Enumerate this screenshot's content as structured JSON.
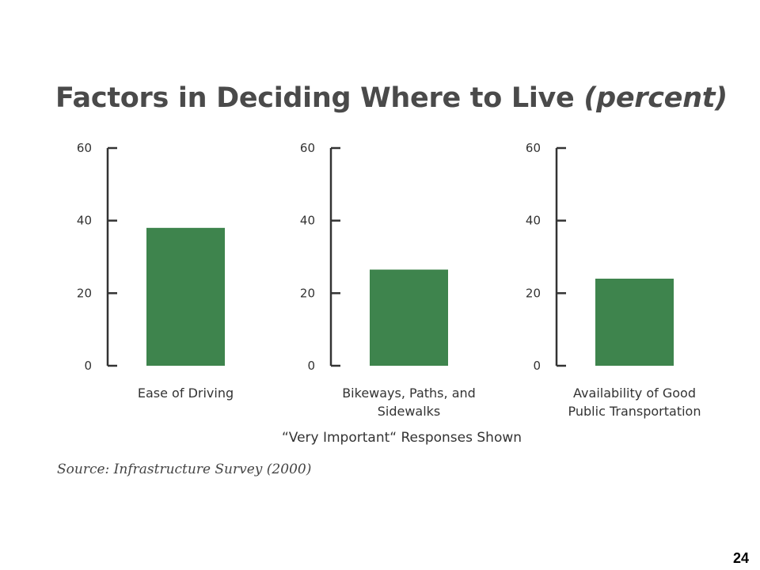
{
  "title": {
    "main": "Factors in Deciding Where to Live",
    "suffix": "(percent)"
  },
  "caption": "“Very Important“ Responses Shown",
  "source": "Source: Infrastructure Survey (2000)",
  "page_number": "24",
  "colors": {
    "bar": "#3e844d",
    "axis": "#333333"
  },
  "chart_data": [
    {
      "type": "bar",
      "categories": [
        "Ease of Driving"
      ],
      "category_lines": [
        [
          "Ease of Driving"
        ]
      ],
      "values": [
        38
      ],
      "ylim": [
        0,
        60
      ],
      "yticks": [
        0,
        20,
        40,
        60
      ],
      "xlabel": "",
      "ylabel": "",
      "grid": false
    },
    {
      "type": "bar",
      "categories": [
        "Bikeways, Paths, and Sidewalks"
      ],
      "category_lines": [
        [
          "Bikeways, Paths, and",
          "Sidewalks"
        ]
      ],
      "values": [
        26.5
      ],
      "ylim": [
        0,
        60
      ],
      "yticks": [
        0,
        20,
        40,
        60
      ],
      "xlabel": "",
      "ylabel": "",
      "grid": false
    },
    {
      "type": "bar",
      "categories": [
        "Availability of Good Public Transportation"
      ],
      "category_lines": [
        [
          "Availability of Good",
          "Public Transportation"
        ]
      ],
      "values": [
        24
      ],
      "ylim": [
        0,
        60
      ],
      "yticks": [
        0,
        20,
        40,
        60
      ],
      "xlabel": "",
      "ylabel": "",
      "grid": false
    }
  ]
}
